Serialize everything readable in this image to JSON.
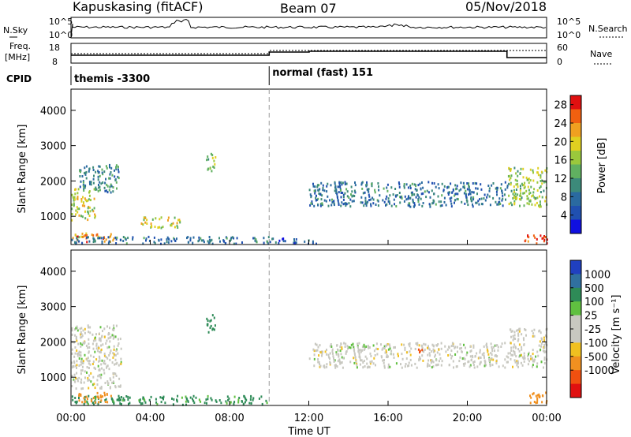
{
  "header": {
    "station": "Kapuskasing (fitACF)",
    "beam": "Beam 07",
    "date": "05/Nov/2018"
  },
  "side_labels": {
    "nsky": "N.Sky",
    "freq": "Freq.",
    "freq_unit": "[MHz]",
    "cpid": "CPID",
    "nsearch": "N.Search",
    "nave": "Nave",
    "nsky_top": "10^5",
    "nsky_bottom": "10^0",
    "nsearch_top": "10^5",
    "nsearch_bottom": "10^0",
    "freq_top": "18",
    "freq_bottom": "8",
    "nave_top": "60",
    "nave_bottom": "0"
  },
  "cpid": {
    "left": "themis -3300",
    "right": "normal (fast) 151",
    "switch_hour": 10
  },
  "colors": {
    "power_scale": [
      "#1010e0",
      "#2050b0",
      "#2a6aa0",
      "#3c8a7a",
      "#60b060",
      "#9ac83c",
      "#e0d020",
      "#f0a020",
      "#f06010",
      "#e01010"
    ],
    "velocity_scale": [
      "#2040c0",
      "#3070a0",
      "#2e8b57",
      "#60c040",
      "#c8c8c0",
      "#c8c8c0",
      "#f0c020",
      "#f09020",
      "#f05010",
      "#e01010"
    ],
    "ground_scatter": "#c0c0b8"
  },
  "chart_data": [
    {
      "type": "heatmap",
      "name_panel": "power",
      "ylabel": "Slant Range [km]",
      "yticks": [
        1000,
        2000,
        3000,
        4000
      ],
      "ylim": [
        200,
        4600
      ],
      "xlim": [
        0,
        24
      ],
      "colorbar_label": "Power [dB]",
      "colorbar_ticks": [
        "4",
        "8",
        "12",
        "16",
        "20",
        "24",
        "28"
      ],
      "colorbar_range": [
        0,
        30
      ],
      "regions": [
        {
          "t0": 0.0,
          "t1": 2.2,
          "r0": 300,
          "r1": 550,
          "v": 24
        },
        {
          "t0": 0.0,
          "t1": 1.2,
          "r0": 900,
          "r1": 1800,
          "v": 18
        },
        {
          "t0": 0.4,
          "t1": 2.4,
          "r0": 1700,
          "r1": 2500,
          "v": 10
        },
        {
          "t0": 3.5,
          "t1": 5.5,
          "r0": 700,
          "r1": 1000,
          "v": 18
        },
        {
          "t0": 6.8,
          "t1": 7.3,
          "r0": 2300,
          "r1": 2800,
          "v": 16
        },
        {
          "t0": 0.0,
          "t1": 10.0,
          "r0": 250,
          "r1": 450,
          "v": 8
        },
        {
          "t0": 10.0,
          "t1": 12.5,
          "r0": 250,
          "r1": 400,
          "v": 6
        },
        {
          "t0": 12.0,
          "t1": 22.0,
          "r0": 1300,
          "r1": 2000,
          "v": 8
        },
        {
          "t0": 22.0,
          "t1": 24.0,
          "r0": 1300,
          "r1": 2400,
          "v": 16
        },
        {
          "t0": 22.8,
          "t1": 24.0,
          "r0": 250,
          "r1": 500,
          "v": 26
        }
      ]
    },
    {
      "type": "heatmap",
      "name_panel": "velocity",
      "xlabel": "Time UT",
      "ylabel": "Slant Range [km]",
      "xticks": [
        "00:00",
        "04:00",
        "08:00",
        "12:00",
        "16:00",
        "20:00",
        "00:00"
      ],
      "yticks": [
        1000,
        2000,
        3000,
        4000
      ],
      "ylim": [
        200,
        4600
      ],
      "xlim": [
        0,
        24
      ],
      "colorbar_label": "Velocity [m s⁻¹]",
      "colorbar_ticks": [
        "1000",
        "500",
        "100",
        "25",
        "-25",
        "-100",
        "-500",
        "-1000"
      ],
      "regions": [
        {
          "t0": 0.0,
          "t1": 2.5,
          "r0": 700,
          "r1": 2500,
          "v": 0
        },
        {
          "t0": 0.0,
          "t1": 10.0,
          "r0": 250,
          "r1": 500,
          "v": 120
        },
        {
          "t0": 0.3,
          "t1": 2.0,
          "r0": 300,
          "r1": 600,
          "v": -150
        },
        {
          "t0": 6.8,
          "t1": 7.3,
          "r0": 2300,
          "r1": 2800,
          "v": 200
        },
        {
          "t0": 12.0,
          "t1": 22.0,
          "r0": 1300,
          "r1": 2000,
          "v": 0
        },
        {
          "t0": 17.5,
          "t1": 17.7,
          "r0": 1700,
          "r1": 1850,
          "v": -900
        },
        {
          "t0": 22.0,
          "t1": 24.0,
          "r0": 1300,
          "r1": 2400,
          "v": 0
        },
        {
          "t0": 22.8,
          "t1": 24.0,
          "r0": 300,
          "r1": 600,
          "v": -200
        }
      ]
    }
  ]
}
